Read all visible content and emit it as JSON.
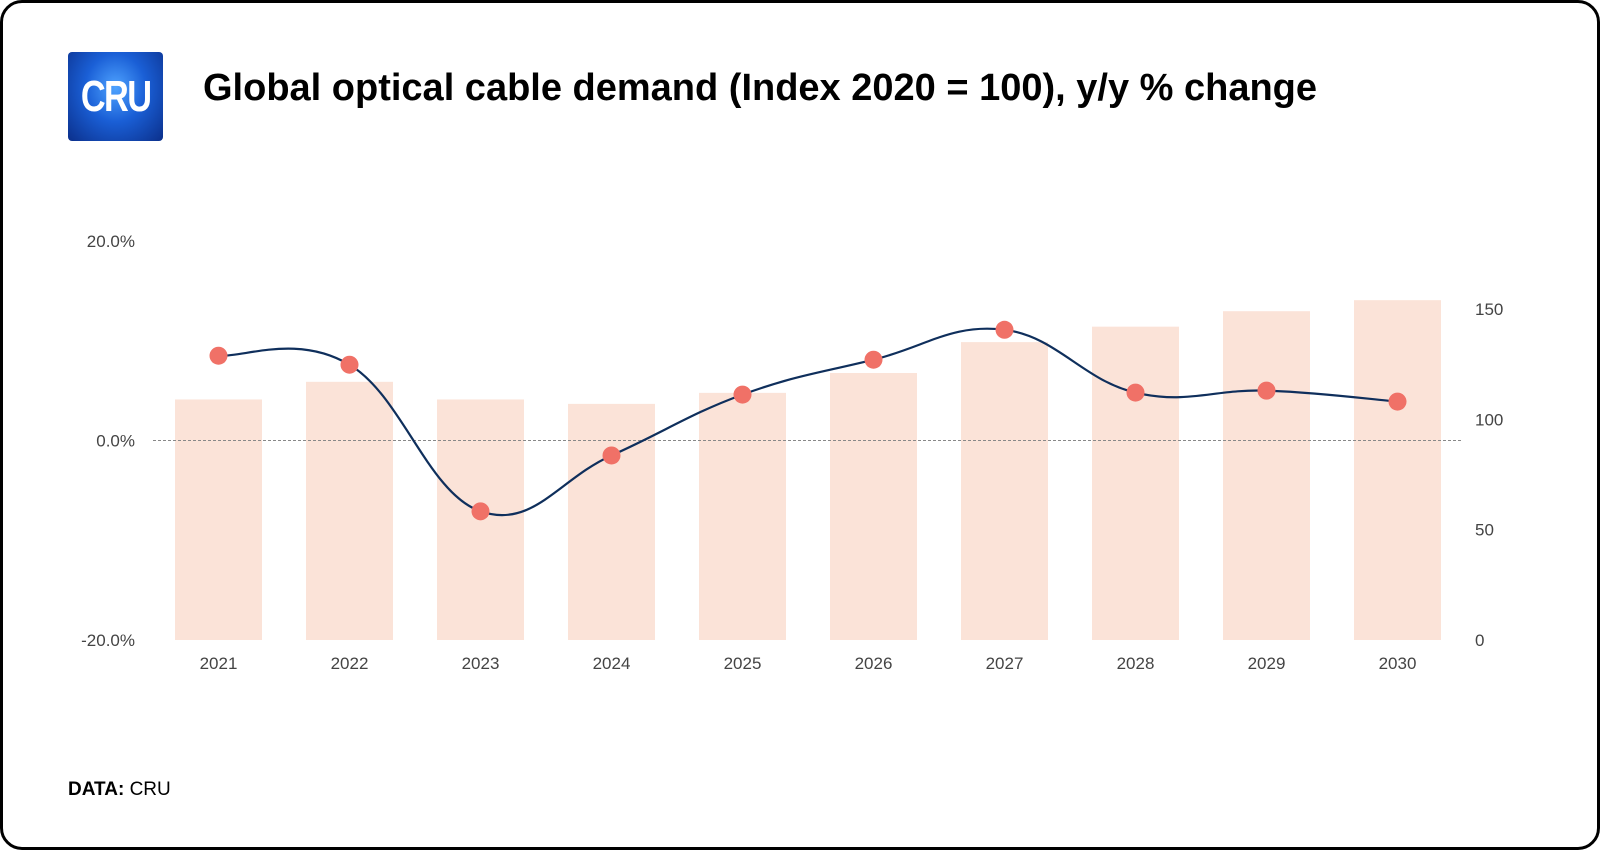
{
  "header": {
    "logo_text": "CRU",
    "title": "Global optical cable demand (Index 2020 = 100), y/y % change"
  },
  "footer": {
    "source_label": "DATA:",
    "source_value": "CRU"
  },
  "colors": {
    "bar": "#fbe3d8",
    "line": "#0f2f5c",
    "marker": "#f07167",
    "axis_text": "#444444",
    "zero_line": "#888888"
  },
  "chart_data": {
    "type": "bar",
    "categories": [
      "2021",
      "2022",
      "2023",
      "2024",
      "2025",
      "2026",
      "2027",
      "2028",
      "2029",
      "2030"
    ],
    "series": [
      {
        "type": "bar",
        "axis": "right",
        "values": [
          109,
          117,
          109,
          107,
          112,
          121,
          135,
          142,
          149,
          154
        ]
      },
      {
        "type": "line",
        "axis": "left",
        "values": [
          8.5,
          7.6,
          -7.1,
          -1.5,
          4.6,
          8.1,
          11.1,
          4.8,
          5.0,
          3.9
        ]
      }
    ],
    "y_left": {
      "ylim": [
        -20,
        20
      ],
      "ticks": [
        "20.0%",
        "0.0%",
        "-20.0%"
      ],
      "tick_values": [
        20,
        0,
        -20
      ]
    },
    "y_right": {
      "ylim": [
        0,
        150
      ],
      "ticks": [
        "150",
        "100",
        "50",
        "0"
      ],
      "tick_values": [
        150,
        100,
        50,
        0
      ]
    },
    "grid": false,
    "legend": "none"
  }
}
